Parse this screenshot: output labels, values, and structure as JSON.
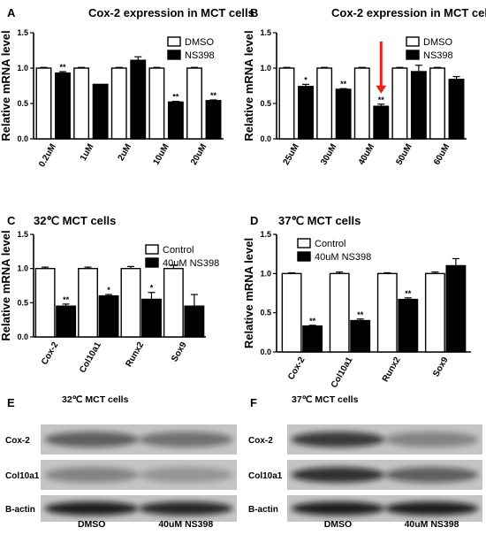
{
  "chart_data": [
    {
      "panel": "A",
      "type": "bar",
      "title": "Cox-2 expression in MCT cells",
      "ylabel": "Relative mRNA level",
      "ylim": [
        0,
        1.5
      ],
      "yticks": [
        "0.0",
        "0.5",
        "1.0",
        "1.5"
      ],
      "categories": [
        "0.2uM",
        "1uM",
        "2uM",
        "10uM",
        "20uM"
      ],
      "series": [
        {
          "name": "DMSO",
          "values": [
            1.0,
            1.0,
            1.0,
            1.0,
            1.0
          ],
          "errors": [
            0.01,
            0.01,
            0.01,
            0.01,
            0.01
          ],
          "fill": "#ffffff"
        },
        {
          "name": "NS398",
          "values": [
            0.93,
            0.77,
            1.11,
            0.52,
            0.54
          ],
          "errors": [
            0.02,
            0.0,
            0.05,
            0.01,
            0.01
          ],
          "fill": "#000000"
        }
      ],
      "significance": [
        "**",
        "",
        "",
        "**",
        "**"
      ],
      "legend_position": "top-right"
    },
    {
      "panel": "B",
      "type": "bar",
      "title": "Cox-2 expression in MCT cells",
      "ylabel": "Relative mRNA level",
      "ylim": [
        0,
        1.5
      ],
      "yticks": [
        "0.0",
        "0.5",
        "1.0",
        "1.5"
      ],
      "categories": [
        "25uM",
        "30uM",
        "40uM",
        "50uM",
        "60uM"
      ],
      "series": [
        {
          "name": "DMSO",
          "values": [
            1.0,
            1.0,
            1.0,
            1.0,
            1.0
          ],
          "errors": [
            0.01,
            0.01,
            0.01,
            0.01,
            0.01
          ],
          "fill": "#ffffff"
        },
        {
          "name": "NS398",
          "values": [
            0.74,
            0.7,
            0.46,
            0.95,
            0.84
          ],
          "errors": [
            0.03,
            0.01,
            0.03,
            0.09,
            0.04
          ],
          "fill": "#000000"
        }
      ],
      "significance": [
        "*",
        "**",
        "**",
        "",
        ""
      ],
      "arrow_category": "40uM",
      "arrow_color": "#e8211b",
      "legend_position": "top-right"
    },
    {
      "panel": "C",
      "type": "bar",
      "title": "32℃ MCT cells",
      "ylabel": "Relative mRNA level",
      "ylim": [
        0,
        1.5
      ],
      "yticks": [
        "0.0",
        "0.5",
        "1.0",
        "1.5"
      ],
      "categories": [
        "Cox-2",
        "Col10a1",
        "Runx2",
        "Sox9"
      ],
      "series": [
        {
          "name": "Control",
          "values": [
            1.0,
            1.0,
            1.0,
            1.0
          ],
          "errors": [
            0.02,
            0.02,
            0.03,
            0.05
          ],
          "fill": "#ffffff"
        },
        {
          "name": "40uM NS398",
          "values": [
            0.45,
            0.6,
            0.55,
            0.45
          ],
          "errors": [
            0.03,
            0.02,
            0.1,
            0.17
          ],
          "fill": "#000000"
        }
      ],
      "significance": [
        "**",
        "*",
        "*",
        ""
      ],
      "legend_position": "top-right"
    },
    {
      "panel": "D",
      "type": "bar",
      "title": "37℃ MCT cells",
      "ylabel": "Relative mRNA level",
      "ylim": [
        0,
        1.5
      ],
      "yticks": [
        "0.0",
        "0.5",
        "1.0",
        "1.5"
      ],
      "categories": [
        "Cox-2",
        "Col10a1",
        "Runx2",
        "Sox9"
      ],
      "series": [
        {
          "name": "Control",
          "values": [
            1.0,
            1.0,
            1.0,
            1.0
          ],
          "errors": [
            0.01,
            0.02,
            0.01,
            0.02
          ],
          "fill": "#ffffff"
        },
        {
          "name": "40uM NS398",
          "values": [
            0.33,
            0.4,
            0.67,
            1.1
          ],
          "errors": [
            0.01,
            0.02,
            0.02,
            0.09
          ],
          "fill": "#000000"
        }
      ],
      "significance": [
        "**",
        "**",
        "**",
        ""
      ],
      "legend_position": "top-left"
    }
  ],
  "blots": [
    {
      "panel": "E",
      "title": "32℃ MCT cells",
      "rows": [
        "Cox-2",
        "Col10a1",
        "B-actin"
      ],
      "conditions": [
        "DMSO",
        "40uM NS398"
      ]
    },
    {
      "panel": "F",
      "title": "37℃ MCT cells",
      "rows": [
        "Cox-2",
        "Col10a1",
        "B-actin"
      ],
      "conditions": [
        "DMSO",
        "40uM NS398"
      ]
    }
  ]
}
